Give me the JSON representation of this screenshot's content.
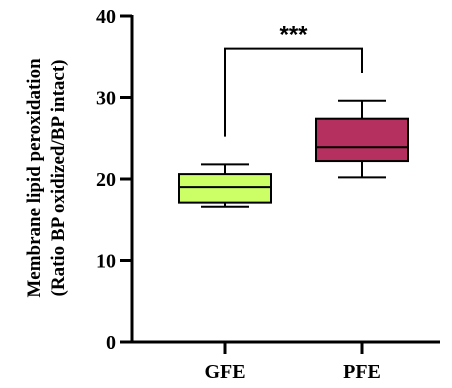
{
  "chart_data": {
    "type": "box",
    "ylabel_line1": "Membrane lipid peroxidation",
    "ylabel_line2": "(Ratio BP oxidized/BP intact)",
    "ylim": [
      0,
      40
    ],
    "yticks": [
      0,
      10,
      20,
      30,
      40
    ],
    "categories": [
      "GFE",
      "PFE"
    ],
    "boxes": [
      {
        "category": "GFE",
        "min": 16.6,
        "q1": 17.1,
        "median": 19.0,
        "q3": 20.6,
        "max": 21.8,
        "color": "#ccff66"
      },
      {
        "category": "PFE",
        "min": 20.2,
        "q1": 22.2,
        "median": 23.9,
        "q3": 27.4,
        "max": 29.6,
        "color": "#b5305e"
      }
    ],
    "significance": {
      "label": "***",
      "between": [
        "GFE",
        "PFE"
      ],
      "left_y": 25.2,
      "right_y": 33.0,
      "top_y": 36.0
    }
  }
}
